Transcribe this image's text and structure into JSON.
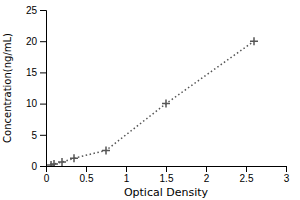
{
  "chart_data": {
    "type": "line",
    "xlabel": "Optical Density",
    "ylabel": "Concentration(ng/mL)",
    "x": [
      0.063,
      0.1,
      0.2,
      0.35,
      0.75,
      1.5,
      2.6
    ],
    "values": [
      0.156,
      0.312,
      0.625,
      1.25,
      2.5,
      10.0,
      20.0
    ],
    "xlim": [
      0,
      3
    ],
    "ylim": [
      0,
      25
    ],
    "xticks": [
      0,
      0.5,
      1.0,
      1.5,
      2.0,
      2.5,
      3.0
    ],
    "yticks": [
      0,
      5,
      10,
      15,
      20,
      25
    ],
    "color": "#555555",
    "marker": "plus",
    "line_style": "dotted",
    "grid": false
  }
}
